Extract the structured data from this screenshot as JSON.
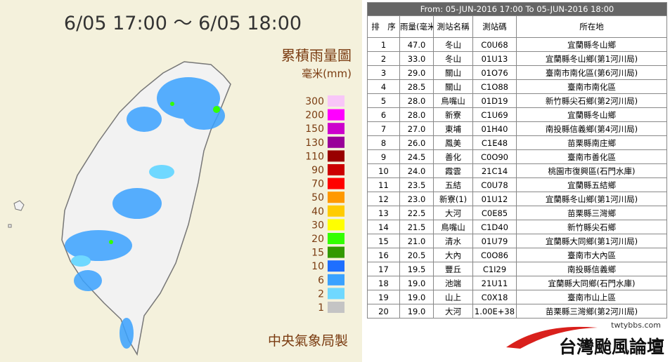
{
  "map": {
    "title": "6/05 17:00 ～ 6/05 18:00",
    "legend_title": "累積雨量圖",
    "unit": "毫米(mm)",
    "legend": [
      {
        "label": 300,
        "color": "#f8c6f8"
      },
      {
        "label": 200,
        "color": "#ff00ff"
      },
      {
        "label": 150,
        "color": "#cc00cc"
      },
      {
        "label": 130,
        "color": "#990099"
      },
      {
        "label": 110,
        "color": "#990000"
      },
      {
        "label": 90,
        "color": "#cc0000"
      },
      {
        "label": 70,
        "color": "#ff0000"
      },
      {
        "label": 50,
        "color": "#ff9900"
      },
      {
        "label": 40,
        "color": "#ffcc00"
      },
      {
        "label": 30,
        "color": "#ffff00"
      },
      {
        "label": 20,
        "color": "#33ff00"
      },
      {
        "label": 15,
        "color": "#339900"
      },
      {
        "label": 10,
        "color": "#1e6fff"
      },
      {
        "label": 6,
        "color": "#3aa2ff"
      },
      {
        "label": 2,
        "color": "#6fd8ff"
      },
      {
        "label": 1,
        "color": "#c4c4c4"
      }
    ],
    "credit": "中央氣象局製"
  },
  "table": {
    "header": "From: 05-JUN-2016 17:00 To 05-JUN-2016 18:00",
    "columns": [
      "排　序",
      "雨量(毫米)",
      "測站名稱",
      "測站碼",
      "所在地"
    ],
    "rows": [
      [
        "1",
        "47.0",
        "冬山",
        "C0U68",
        "宜蘭縣冬山鄉"
      ],
      [
        "2",
        "33.0",
        "冬山",
        "01U13",
        "宜蘭縣冬山鄉(第1河川局)"
      ],
      [
        "3",
        "29.0",
        "關山",
        "01O76",
        "臺南市南化區(第6河川局)"
      ],
      [
        "4",
        "28.5",
        "關山",
        "C1O88",
        "臺南市南化區"
      ],
      [
        "5",
        "28.0",
        "鳥嘴山",
        "01D19",
        "新竹縣尖石鄉(第2河川局)"
      ],
      [
        "6",
        "28.0",
        "新寮",
        "C1U69",
        "宜蘭縣冬山鄉"
      ],
      [
        "7",
        "27.0",
        "東埔",
        "01H40",
        "南投縣信義鄉(第4河川局)"
      ],
      [
        "8",
        "26.0",
        "鳳美",
        "C1E48",
        "苗栗縣南庄鄉"
      ],
      [
        "9",
        "24.5",
        "善化",
        "C0O90",
        "臺南市善化區"
      ],
      [
        "10",
        "24.0",
        "霞雲",
        "21C14",
        "桃園市復興區(石門水庫)"
      ],
      [
        "11",
        "23.5",
        "五結",
        "C0U78",
        "宜蘭縣五結鄉"
      ],
      [
        "12",
        "23.0",
        "新寮(1)",
        "01U12",
        "宜蘭縣冬山鄉(第1河川局)"
      ],
      [
        "13",
        "22.5",
        "大河",
        "C0E85",
        "苗栗縣三灣鄉"
      ],
      [
        "14",
        "21.5",
        "鳥嘴山",
        "C1D40",
        "新竹縣尖石鄉"
      ],
      [
        "15",
        "21.0",
        "清水",
        "01U79",
        "宜蘭縣大同鄉(第1河川局)"
      ],
      [
        "16",
        "20.5",
        "大內",
        "C0O86",
        "臺南市大內區"
      ],
      [
        "17",
        "19.5",
        "豐丘",
        "C1I29",
        "南投縣信義鄉"
      ],
      [
        "18",
        "19.0",
        "池端",
        "21U11",
        "宜蘭縣大同鄉(石門水庫)"
      ],
      [
        "19",
        "19.0",
        "山上",
        "C0X18",
        "臺南市山上區"
      ],
      [
        "20",
        "19.0",
        "大河",
        "1.00E+38",
        "苗栗縣三灣鄉(第2河川局)"
      ]
    ]
  },
  "logo": {
    "site": "twtybbs.com",
    "name": "台灣颱風論壇"
  }
}
